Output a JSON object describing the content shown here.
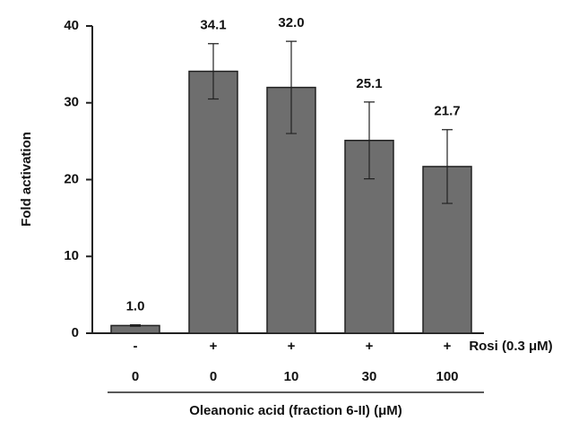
{
  "chart_data": {
    "type": "bar",
    "ylabel": "Fold activation",
    "rosi": [
      "-",
      "+",
      "+",
      "+",
      "+"
    ],
    "rosi_label": "Rosi (0.3 μM)",
    "categories": [
      "0",
      "0",
      "10",
      "30",
      "100"
    ],
    "xlabel": "Oleanonic acid (fraction 6-II) (μM)",
    "values": [
      1.0,
      34.1,
      32.0,
      25.1,
      21.7
    ],
    "value_labels": [
      "1.0",
      "34.1",
      "32.0",
      "25.1",
      "21.7"
    ],
    "errors": [
      0.1,
      3.6,
      6.0,
      5.0,
      4.8
    ],
    "color": "#6e6e6e",
    "ylim": [
      0,
      40
    ],
    "yticks": [
      0,
      10,
      20,
      30,
      40
    ]
  }
}
